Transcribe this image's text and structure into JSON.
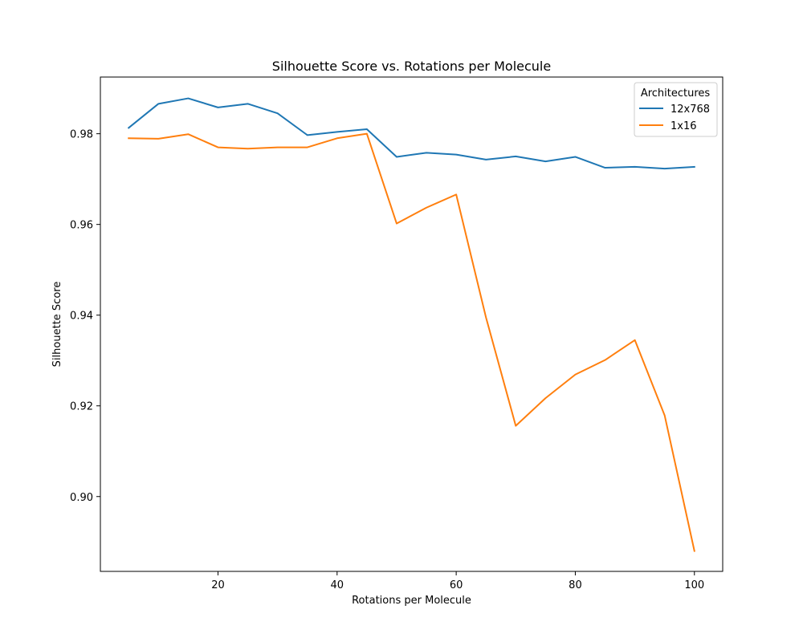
{
  "chart_data": {
    "type": "line",
    "title": "Silhouette Score vs. Rotations per Molecule",
    "xlabel": "Rotations per Molecule",
    "ylabel": "Silhouette Score",
    "xlim": [
      0.25,
      104.75
    ],
    "ylim": [
      0.8835,
      0.9925
    ],
    "xticks": [
      20,
      40,
      60,
      80,
      100
    ],
    "yticks": [
      0.9,
      0.92,
      0.94,
      0.96,
      0.98
    ],
    "xtick_labels": [
      "20",
      "40",
      "60",
      "80",
      "100"
    ],
    "ytick_labels": [
      "0.90",
      "0.92",
      "0.94",
      "0.96",
      "0.98"
    ],
    "grid": false,
    "legend": {
      "title": "Architectures",
      "placement": "top-right"
    },
    "x": [
      5,
      10,
      15,
      20,
      25,
      30,
      35,
      40,
      45,
      50,
      55,
      60,
      65,
      70,
      75,
      80,
      85,
      90,
      95,
      100
    ],
    "series": [
      {
        "name": "12x768",
        "color": "#1f77b4",
        "values": [
          0.9813,
          0.9866,
          0.9878,
          0.9858,
          0.9866,
          0.9845,
          0.9797,
          0.9804,
          0.981,
          0.9749,
          0.9758,
          0.9754,
          0.9743,
          0.975,
          0.9739,
          0.9749,
          0.9725,
          0.9727,
          0.9723,
          0.9727
        ]
      },
      {
        "name": "1x16",
        "color": "#ff7f0e",
        "values": [
          0.979,
          0.9789,
          0.9799,
          0.977,
          0.9767,
          0.977,
          0.977,
          0.979,
          0.98,
          0.9602,
          0.9637,
          0.9666,
          0.9395,
          0.9156,
          0.9217,
          0.9269,
          0.9301,
          0.9345,
          0.9179,
          0.888
        ]
      }
    ]
  }
}
